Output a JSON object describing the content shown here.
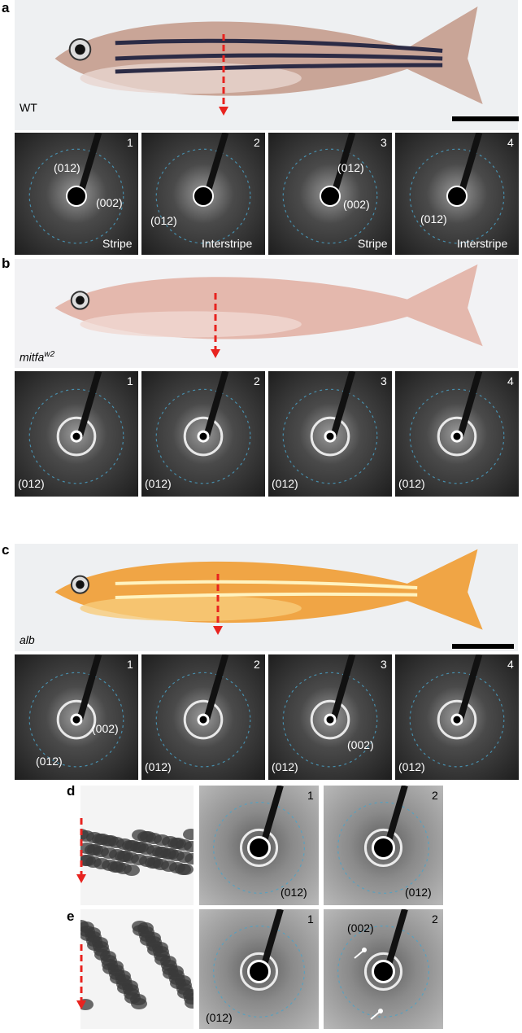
{
  "panels": [
    {
      "letter": "a",
      "photo_label": "WT",
      "tiles": [
        {
          "number": "1",
          "labels": [
            "(012)",
            "(002)",
            "Stripe"
          ]
        },
        {
          "number": "2",
          "labels": [
            "(012)",
            "Interstripe"
          ]
        },
        {
          "number": "3",
          "labels": [
            "(012)",
            "(002)",
            "Stripe"
          ]
        },
        {
          "number": "4",
          "labels": [
            "(012)",
            "Interstripe"
          ]
        }
      ]
    },
    {
      "letter": "b",
      "photo_label": "mitfa",
      "photo_label_sup": "w2",
      "tiles": [
        {
          "number": "1",
          "labels": [
            "(012)"
          ]
        },
        {
          "number": "2",
          "labels": [
            "(012)"
          ]
        },
        {
          "number": "3",
          "labels": [
            "(012)"
          ]
        },
        {
          "number": "4",
          "labels": [
            "(012)"
          ]
        }
      ]
    },
    {
      "letter": "c",
      "photo_label": "alb",
      "tiles": [
        {
          "number": "1",
          "labels": [
            "(012)",
            "(002)"
          ]
        },
        {
          "number": "2",
          "labels": [
            "(012)"
          ]
        },
        {
          "number": "3",
          "labels": [
            "(012)",
            "(002)"
          ]
        },
        {
          "number": "4",
          "labels": [
            "(012)"
          ]
        }
      ]
    },
    {
      "letter": "d",
      "tiles": [
        {
          "number": "1",
          "labels": [
            "(012)"
          ]
        },
        {
          "number": "2",
          "labels": [
            "(012)"
          ]
        }
      ]
    },
    {
      "letter": "e",
      "tiles": [
        {
          "number": "1",
          "labels": [
            "(012)"
          ]
        },
        {
          "number": "2",
          "labels": [
            "(002)"
          ]
        }
      ]
    }
  ]
}
